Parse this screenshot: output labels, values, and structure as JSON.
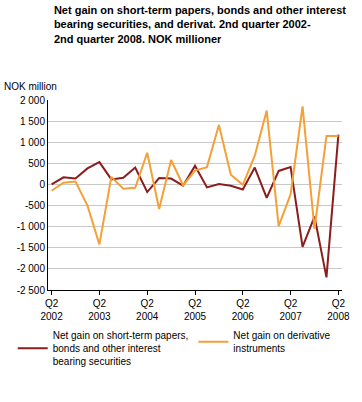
{
  "chart_data": {
    "type": "line",
    "title": "Net gain on short-term papers, bonds and other interest\nbearing securities, and derivat. 2nd quarter 2002-\n2nd quarter 2008. NOK millioner",
    "y_label": "NOK million",
    "categories": [
      "Q2\n2002",
      null,
      null,
      null,
      "Q2\n2003",
      null,
      null,
      null,
      "Q2\n2004",
      null,
      null,
      null,
      "Q2\n2005",
      null,
      null,
      null,
      "Q2\n2006",
      null,
      null,
      null,
      "Q2\n2007",
      null,
      null,
      null,
      "Q2\n2008"
    ],
    "series": [
      {
        "name": "Net gain on short-term papers,\nbonds and other interest\nbearing securities",
        "color": "#8c1d1d",
        "values": [
          0,
          170,
          140,
          380,
          530,
          120,
          160,
          400,
          -180,
          150,
          140,
          -30,
          440,
          -70,
          10,
          -30,
          -120,
          400,
          -320,
          320,
          410,
          -1480,
          -760,
          -2200,
          1180
        ]
      },
      {
        "name": "Net gain on derivative\ninstruments",
        "color": "#f5a037",
        "values": [
          -150,
          40,
          70,
          -500,
          -1420,
          180,
          -100,
          -80,
          750,
          -580,
          580,
          -20,
          330,
          410,
          1410,
          230,
          -10,
          680,
          1750,
          -990,
          -230,
          1850,
          -1050,
          1150,
          1150
        ]
      }
    ],
    "ylim": [
      -2500,
      2000
    ],
    "yticks": [
      {
        "value": -2500,
        "label": "-2 500"
      },
      {
        "value": -2000,
        "label": "-2 000"
      },
      {
        "value": -1500,
        "label": "-1 500"
      },
      {
        "value": -1000,
        "label": "-1 000"
      },
      -500,
      0,
      500,
      {
        "value": 1000,
        "label": "1 000"
      },
      {
        "value": 1500,
        "label": "1 500"
      },
      {
        "value": 2000,
        "label": "2 000"
      }
    ],
    "grid": true,
    "legend": "bottom"
  }
}
